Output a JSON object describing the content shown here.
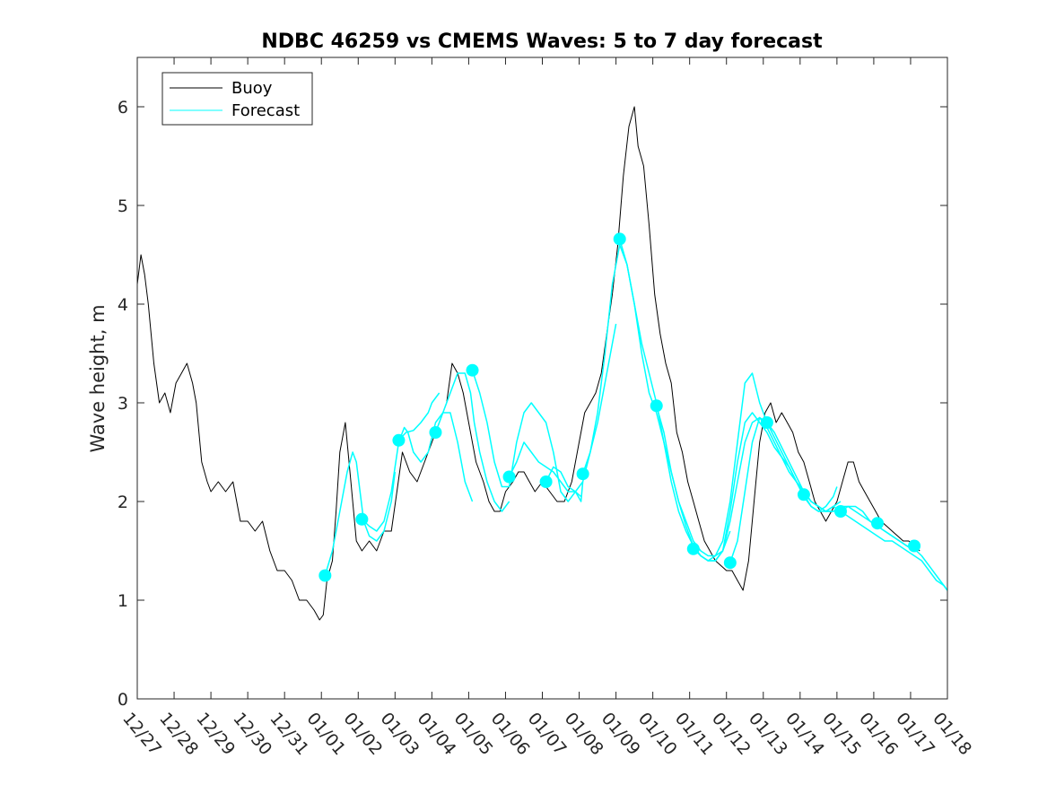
{
  "chart_data": {
    "type": "line",
    "title": "NDBC 46259 vs CMEMS Waves: 5 to 7 day forecast",
    "xlabel": "",
    "ylabel": "Wave height, m",
    "xlim": [
      0,
      22
    ],
    "ylim": [
      0,
      6.5
    ],
    "yticks": [
      0,
      1,
      2,
      3,
      4,
      5,
      6
    ],
    "xticks": [
      "12/27",
      "12/28",
      "12/29",
      "12/30",
      "12/31",
      "01/01",
      "01/02",
      "01/03",
      "01/04",
      "01/05",
      "01/06",
      "01/07",
      "01/08",
      "01/09",
      "01/10",
      "01/11",
      "01/12",
      "01/13",
      "01/14",
      "01/15",
      "01/16",
      "01/17",
      "01/18"
    ],
    "grid": false,
    "legend": {
      "location": "top-left",
      "entries": [
        "Buoy",
        "Forecast"
      ]
    },
    "colors": {
      "buoy": "#000000",
      "forecast": "#00ffff",
      "axes": "#262626"
    },
    "series": [
      {
        "name": "Buoy",
        "color": "#000000",
        "x": [
          0,
          0.1,
          0.2,
          0.3,
          0.45,
          0.6,
          0.75,
          0.9,
          1.05,
          1.2,
          1.35,
          1.5,
          1.6,
          1.75,
          1.9,
          2.0,
          2.2,
          2.4,
          2.6,
          2.8,
          3.0,
          3.2,
          3.4,
          3.6,
          3.8,
          4.0,
          4.2,
          4.4,
          4.6,
          4.8,
          4.95,
          5.05,
          5.15,
          5.3,
          5.4,
          5.5,
          5.65,
          5.8,
          5.95,
          6.1,
          6.3,
          6.5,
          6.7,
          6.9,
          7.05,
          7.2,
          7.4,
          7.6,
          7.8,
          8.0,
          8.2,
          8.4,
          8.55,
          8.7,
          8.85,
          9.0,
          9.2,
          9.4,
          9.55,
          9.7,
          9.85,
          10.0,
          10.2,
          10.35,
          10.5,
          10.65,
          10.8,
          11.0,
          11.2,
          11.4,
          11.6,
          11.8,
          12.0,
          12.15,
          12.3,
          12.45,
          12.6,
          12.75,
          12.9,
          13.05,
          13.2,
          13.35,
          13.5,
          13.6,
          13.75,
          13.9,
          14.05,
          14.2,
          14.35,
          14.5,
          14.65,
          14.8,
          14.95,
          15.1,
          15.25,
          15.4,
          15.55,
          15.7,
          15.85,
          16.0,
          16.15,
          16.3,
          16.45,
          16.6,
          16.75,
          16.9,
          17.05,
          17.2,
          17.35,
          17.5,
          17.65,
          17.8,
          17.95,
          18.1,
          18.25,
          18.4,
          18.55,
          18.7,
          18.85,
          19.0,
          19.15,
          19.3,
          19.45,
          19.6,
          19.75,
          19.9,
          20.05,
          20.2,
          20.35,
          20.5,
          20.65,
          20.8,
          20.95,
          21.1,
          21.25
        ],
        "values": [
          4.2,
          4.5,
          4.3,
          4.0,
          3.4,
          3.0,
          3.1,
          2.9,
          3.2,
          3.3,
          3.4,
          3.2,
          3.0,
          2.4,
          2.2,
          2.1,
          2.2,
          2.1,
          2.2,
          1.8,
          1.8,
          1.7,
          1.8,
          1.5,
          1.3,
          1.3,
          1.2,
          1.0,
          1.0,
          0.9,
          0.8,
          0.85,
          1.2,
          1.4,
          1.9,
          2.5,
          2.8,
          2.2,
          1.6,
          1.5,
          1.6,
          1.5,
          1.7,
          1.7,
          2.1,
          2.5,
          2.3,
          2.2,
          2.4,
          2.6,
          2.8,
          3.0,
          3.4,
          3.3,
          3.1,
          2.8,
          2.4,
          2.2,
          2.0,
          1.9,
          1.9,
          2.1,
          2.2,
          2.3,
          2.3,
          2.2,
          2.1,
          2.2,
          2.1,
          2.0,
          2.0,
          2.2,
          2.6,
          2.9,
          3.0,
          3.1,
          3.3,
          3.7,
          4.1,
          4.6,
          5.3,
          5.8,
          6.0,
          5.6,
          5.4,
          4.8,
          4.1,
          3.7,
          3.4,
          3.2,
          2.7,
          2.5,
          2.2,
          2.0,
          1.8,
          1.6,
          1.5,
          1.4,
          1.35,
          1.3,
          1.3,
          1.2,
          1.1,
          1.4,
          2.0,
          2.6,
          2.9,
          3.0,
          2.8,
          2.9,
          2.8,
          2.7,
          2.5,
          2.4,
          2.2,
          2.0,
          1.9,
          1.8,
          1.9,
          2.0,
          2.2,
          2.4,
          2.4,
          2.2,
          2.1,
          2.0,
          1.9,
          1.8,
          1.75,
          1.7,
          1.65,
          1.6,
          1.6,
          1.55,
          1.5
        ]
      },
      {
        "name": "Forecast",
        "color": "#00ffff",
        "segments": [
          {
            "x": [
              5.1,
              5.3,
              5.5,
              5.7,
              5.85,
              5.95,
              6.05,
              6.15,
              6.3,
              6.5,
              6.7,
              6.9,
              7.0
            ],
            "values": [
              1.25,
              1.5,
              1.9,
              2.3,
              2.5,
              2.4,
              2.1,
              1.8,
              1.65,
              1.6,
              1.7,
              2.0,
              2.3
            ]
          },
          {
            "x": [
              6.1,
              6.3,
              6.5,
              6.7,
              6.9,
              7.1,
              7.25,
              7.35,
              7.5,
              7.7,
              7.9,
              8.1,
              8.3,
              8.5,
              8.7,
              8.9,
              9.1
            ],
            "values": [
              1.82,
              1.75,
              1.7,
              1.8,
              2.1,
              2.6,
              2.75,
              2.7,
              2.5,
              2.4,
              2.5,
              2.8,
              2.9,
              2.9,
              2.6,
              2.2,
              2.0
            ]
          },
          {
            "x": [
              7.1,
              7.3,
              7.5,
              7.7,
              7.9,
              8.0,
              8.1,
              8.2
            ],
            "values": [
              2.62,
              2.7,
              2.72,
              2.8,
              2.9,
              3.0,
              3.05,
              3.1
            ]
          },
          {
            "x": [
              8.1,
              8.3,
              8.5,
              8.7,
              8.9,
              9.05,
              9.15,
              9.3,
              9.5,
              9.7,
              9.9,
              10.1
            ],
            "values": [
              2.7,
              2.9,
              3.1,
              3.3,
              3.3,
              3.1,
              2.8,
              2.5,
              2.2,
              2.0,
              1.9,
              2.0
            ]
          },
          {
            "x": [
              9.1,
              9.3,
              9.5,
              9.7,
              9.9,
              10.1,
              10.3,
              10.5,
              10.7,
              10.9,
              11.1,
              11.3,
              11.5,
              11.7,
              11.9,
              12.1
            ],
            "values": [
              3.33,
              3.1,
              2.8,
              2.4,
              2.15,
              2.15,
              2.6,
              2.9,
              3.0,
              2.9,
              2.8,
              2.5,
              2.1,
              2.0,
              2.1,
              2.2
            ]
          },
          {
            "x": [
              10.1,
              10.3,
              10.5,
              10.7,
              10.9,
              11.1,
              11.3,
              11.5,
              11.7,
              11.9,
              12.05,
              12.1,
              12.3,
              12.5,
              12.7,
              12.9,
              13.1,
              13.3,
              13.5,
              13.7,
              13.9,
              14.1,
              14.3,
              14.5,
              14.7,
              14.9,
              15.1,
              15.3,
              15.5,
              15.7,
              15.9,
              16.1,
              16.3,
              16.5,
              16.7,
              16.9,
              17.1
            ],
            "values": [
              2.25,
              2.4,
              2.6,
              2.5,
              2.4,
              2.35,
              2.3,
              2.2,
              2.1,
              2.1,
              2.0,
              2.2,
              2.5,
              2.9,
              3.5,
              4.2,
              4.6,
              4.4,
              4.0,
              3.6,
              3.3,
              3.0,
              2.6,
              2.2,
              1.9,
              1.7,
              1.55,
              1.45,
              1.4,
              1.45,
              1.6,
              2.0,
              2.6,
              3.2,
              3.3,
              3.0,
              2.8
            ]
          },
          {
            "x": [
              11.1,
              11.3,
              11.5,
              11.7,
              11.9,
              12.05
            ],
            "values": [
              2.2,
              2.35,
              2.3,
              2.15,
              2.1,
              2.05
            ]
          },
          {
            "x": [
              12.1,
              12.3,
              12.5,
              12.7,
              12.9,
              13.0
            ],
            "values": [
              2.28,
              2.5,
              2.8,
              3.2,
              3.6,
              3.8
            ]
          },
          {
            "x": [
              13.1,
              13.3,
              13.5,
              13.7,
              13.9,
              14.1,
              14.3,
              14.5,
              14.7,
              14.9,
              15.1,
              15.3,
              15.5,
              15.7,
              15.9,
              16.1
            ],
            "values": [
              4.66,
              4.4,
              4.0,
              3.5,
              3.1,
              2.9,
              2.6,
              2.3,
              2.0,
              1.8,
              1.6,
              1.5,
              1.45,
              1.45,
              1.5,
              1.7
            ]
          },
          {
            "x": [
              14.1,
              14.3,
              14.5,
              14.7,
              14.9,
              15.1,
              15.3,
              15.5,
              15.7,
              15.9,
              16.1,
              16.3,
              16.5,
              16.7,
              16.9,
              17.1,
              17.3,
              17.5,
              17.7,
              17.9,
              18.1,
              18.3,
              18.5,
              18.7,
              18.9,
              19.1
            ],
            "values": [
              2.97,
              2.7,
              2.3,
              2.0,
              1.75,
              1.55,
              1.45,
              1.4,
              1.4,
              1.5,
              1.8,
              2.2,
              2.6,
              2.8,
              2.85,
              2.75,
              2.6,
              2.45,
              2.3,
              2.2,
              2.1,
              2.0,
              1.95,
              1.9,
              1.9,
              1.95
            ]
          },
          {
            "x": [
              15.1,
              15.3,
              15.5,
              15.7,
              15.9,
              16.1,
              16.3,
              16.5,
              16.7,
              16.9,
              17.1,
              17.3,
              17.5,
              17.7,
              17.9,
              18.1,
              18.3,
              18.5,
              18.7,
              18.9,
              19.1
            ],
            "values": [
              1.52,
              1.45,
              1.4,
              1.4,
              1.5,
              1.9,
              2.4,
              2.8,
              2.9,
              2.8,
              2.7,
              2.55,
              2.45,
              2.35,
              2.2,
              2.1,
              2.0,
              1.95,
              1.9,
              1.95,
              2.0
            ]
          },
          {
            "x": [
              16.1,
              16.3,
              16.5,
              16.7,
              16.9,
              17.1,
              17.3,
              17.5,
              17.7,
              17.9,
              18.1,
              18.3,
              18.5,
              18.7,
              18.9,
              19.1,
              19.3,
              19.5,
              19.7,
              19.9,
              20.1,
              20.3,
              20.5,
              20.7,
              20.9,
              21.1
            ],
            "values": [
              1.38,
              1.6,
              2.1,
              2.6,
              2.85,
              2.8,
              2.7,
              2.55,
              2.4,
              2.25,
              2.1,
              2.0,
              1.95,
              1.9,
              1.9,
              1.95,
              1.95,
              1.9,
              1.85,
              1.8,
              1.75,
              1.7,
              1.65,
              1.6,
              1.55,
              1.5
            ]
          },
          {
            "x": [
              17.1,
              17.3,
              17.5,
              17.7,
              17.9,
              18.1,
              18.3,
              18.5,
              18.7,
              18.9,
              19.0
            ],
            "values": [
              2.8,
              2.65,
              2.5,
              2.35,
              2.2,
              2.05,
              1.95,
              1.9,
              1.95,
              2.05,
              2.15
            ]
          },
          {
            "x": [
              18.1,
              18.3,
              18.5,
              18.7,
              18.9,
              19.1,
              19.3,
              19.5,
              19.7,
              19.9,
              20.1,
              20.3,
              20.5,
              20.7,
              20.9,
              21.1,
              21.3,
              21.5,
              21.7,
              21.9,
              22.0
            ],
            "values": [
              2.07,
              1.95,
              1.9,
              1.9,
              1.95,
              1.9,
              1.85,
              1.8,
              1.75,
              1.7,
              1.65,
              1.6,
              1.6,
              1.55,
              1.5,
              1.45,
              1.4,
              1.3,
              1.2,
              1.15,
              1.1
            ]
          },
          {
            "x": [
              19.1,
              19.3,
              19.5,
              19.7,
              19.9,
              20.1,
              20.3,
              20.5,
              20.7,
              20.9,
              21.1,
              21.3,
              21.5,
              21.7,
              21.9,
              22.0
            ],
            "values": [
              1.9,
              1.95,
              1.95,
              1.9,
              1.8,
              1.75,
              1.7,
              1.65,
              1.6,
              1.55,
              1.52,
              1.45,
              1.35,
              1.25,
              1.15,
              1.1
            ]
          }
        ],
        "markers": {
          "x": [
            5.1,
            6.1,
            7.1,
            8.1,
            9.1,
            10.1,
            11.1,
            12.1,
            13.1,
            14.1,
            15.1,
            16.1,
            17.1,
            18.1,
            19.1,
            20.1,
            21.1
          ],
          "values": [
            1.25,
            1.82,
            2.62,
            2.7,
            3.33,
            2.25,
            2.2,
            2.28,
            4.66,
            2.97,
            1.52,
            1.38,
            2.8,
            2.07,
            1.9,
            1.78,
            1.55
          ]
        }
      }
    ]
  }
}
